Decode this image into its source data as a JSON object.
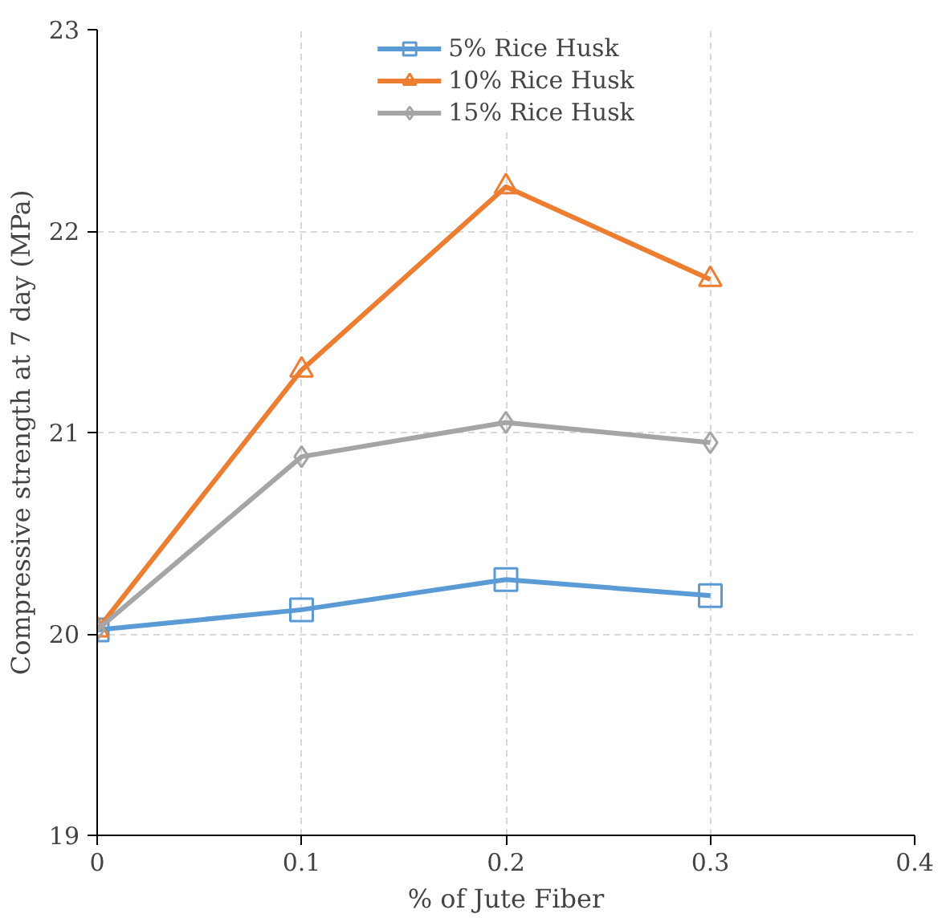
{
  "chart_data": {
    "type": "line",
    "xlabel": "% of Jute Fiber",
    "ylabel": "Compressive strength at 7 day (MPa)",
    "x": [
      0,
      0.1,
      0.2,
      0.3
    ],
    "series": [
      {
        "name": "5% Rice Husk",
        "color": "#5b9bd5",
        "marker": "square",
        "values": [
          20.02,
          20.12,
          20.27,
          20.19
        ]
      },
      {
        "name": "10% Rice Husk",
        "color": "#ed7d31",
        "marker": "triangle",
        "values": [
          20.02,
          21.31,
          22.22,
          21.76
        ]
      },
      {
        "name": "15% Rice Husk",
        "color": "#a5a5a5",
        "marker": "diamond",
        "values": [
          20.02,
          20.88,
          21.05,
          20.95
        ]
      }
    ],
    "xlim": [
      0,
      0.4
    ],
    "xticks": [
      0,
      0.1,
      0.2,
      0.3,
      0.4
    ],
    "ylim": [
      19,
      23
    ],
    "yticks": [
      19,
      20,
      21,
      22,
      23
    ],
    "grid": true,
    "legend": "top",
    "line_style": "solid"
  }
}
